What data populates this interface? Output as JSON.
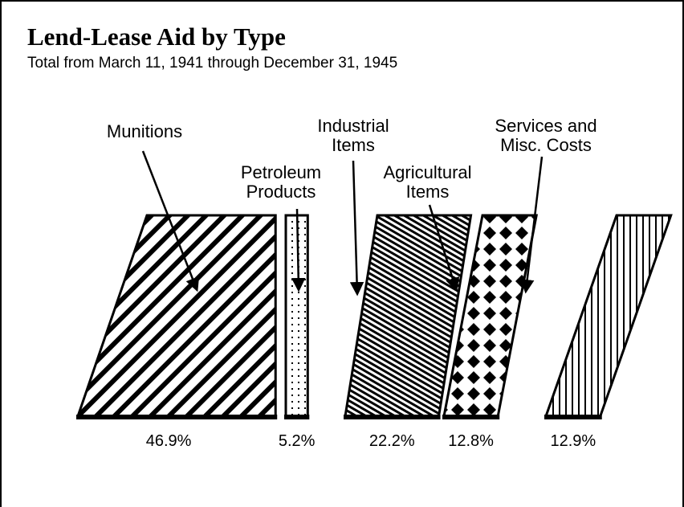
{
  "chart_data": {
    "type": "bar",
    "title": "Lend-Lease Aid by Type",
    "subtitle": "Total from March 11, 1941 through December 31, 1945",
    "categories": [
      "Munitions",
      "Petroleum Products",
      "Industrial Items",
      "Agricultural Items",
      "Services and Misc. Costs"
    ],
    "values": [
      46.9,
      5.2,
      22.2,
      12.8,
      12.9
    ],
    "value_labels": [
      "46.9%",
      "5.2%",
      "22.2%",
      "12.8%",
      "12.9%"
    ],
    "color": "#000000"
  }
}
